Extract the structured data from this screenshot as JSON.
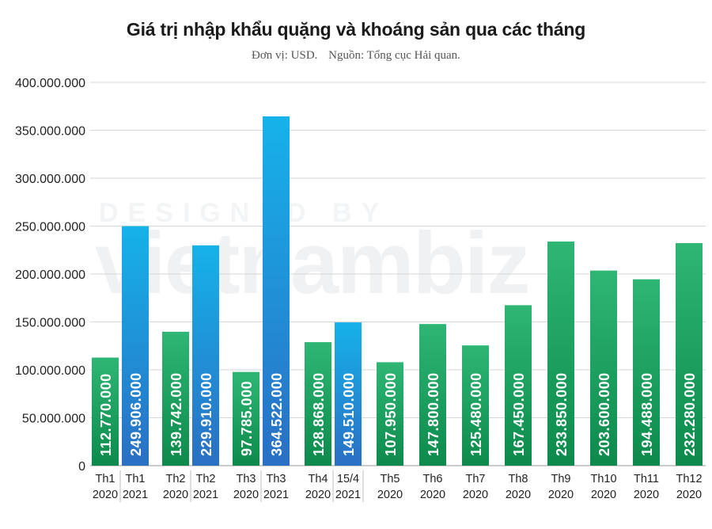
{
  "title": "Giá trị nhập khẩu quặng và khoáng sản qua các tháng",
  "subtitle": {
    "unit": "Đơn vị: USD.",
    "source": "Nguồn: Tổng cục Hải quan."
  },
  "watermark": {
    "line1": "DESIGNED BY",
    "line2": "vietnambiz"
  },
  "colors": {
    "green_top": "#2fb674",
    "green_bottom": "#0c8a4c",
    "blue_top": "#16b2ea",
    "blue_bottom": "#2a6fc3",
    "gridline": "#d6d6d6",
    "separator": "#bdbdbd"
  },
  "chart_data": {
    "type": "bar",
    "title": "Giá trị nhập khẩu quặng và khoáng sản qua các tháng",
    "subtitle": "Đơn vị: USD.    Nguồn: Tổng cục Hải quan.",
    "ylim": [
      0,
      400000000
    ],
    "yticks": [
      "0",
      "50.000.000",
      "100.000.000",
      "150.000.000",
      "200.000.000",
      "250.000.000",
      "300.000.000",
      "350.000.000",
      "400.000.000"
    ],
    "grid": true,
    "legend": "none",
    "categories": [
      {
        "line1": "Th1",
        "line2": "2020",
        "value": 112770000,
        "label": "112.770.000",
        "series": "2020"
      },
      {
        "line1": "Th1",
        "line2": "2021",
        "value": 249906000,
        "label": "249.906.000",
        "series": "2021"
      },
      {
        "line1": "Th2",
        "line2": "2020",
        "value": 139742000,
        "label": "139.742.000",
        "series": "2020"
      },
      {
        "line1": "Th2",
        "line2": "2021",
        "value": 229910000,
        "label": "229.910.000",
        "series": "2021"
      },
      {
        "line1": "Th3",
        "line2": "2020",
        "value": 97785000,
        "label": "97.785.000",
        "series": "2020"
      },
      {
        "line1": "Th3",
        "line2": "2021",
        "value": 364522000,
        "label": "364.522.000",
        "series": "2021"
      },
      {
        "line1": "Th4",
        "line2": "2020",
        "value": 128868000,
        "label": "128.868.000",
        "series": "2020"
      },
      {
        "line1": "15/4",
        "line2": "2021",
        "value": 149510000,
        "label": "149.510.000",
        "series": "2021"
      },
      {
        "line1": "Th5",
        "line2": "2020",
        "value": 107950000,
        "label": "107.950.000",
        "series": "2020"
      },
      {
        "line1": "Th6",
        "line2": "2020",
        "value": 147800000,
        "label": "147.800.000",
        "series": "2020"
      },
      {
        "line1": "Th7",
        "line2": "2020",
        "value": 125480000,
        "label": "125.480.000",
        "series": "2020"
      },
      {
        "line1": "Th8",
        "line2": "2020",
        "value": 167450000,
        "label": "167.450.000",
        "series": "2020"
      },
      {
        "line1": "Th9",
        "line2": "2020",
        "value": 233850000,
        "label": "233.850.000",
        "series": "2020"
      },
      {
        "line1": "Th10",
        "line2": "2020",
        "value": 203600000,
        "label": "203.600.000",
        "series": "2020"
      },
      {
        "line1": "Th11",
        "line2": "2020",
        "value": 194488000,
        "label": "194.488.000",
        "series": "2020"
      },
      {
        "line1": "Th12",
        "line2": "2020",
        "value": 232280000,
        "label": "232.280.000",
        "series": "2020"
      }
    ]
  }
}
